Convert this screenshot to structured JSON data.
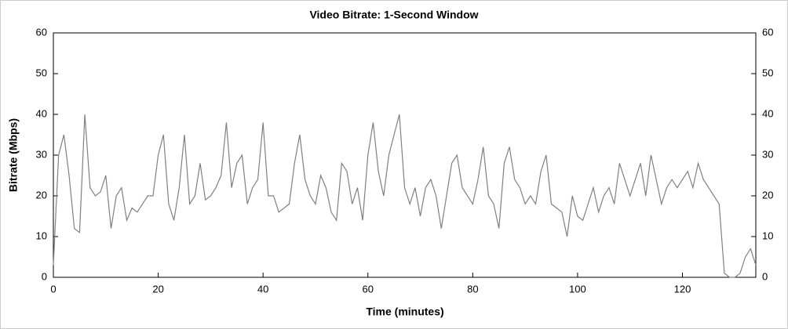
{
  "chart_data": {
    "type": "line",
    "title": "Video Bitrate: 1-Second Window",
    "xlabel": "Time (minutes)",
    "ylabel": "Bitrate (Mbps)",
    "x": [
      0,
      1,
      2,
      3,
      4,
      5,
      6,
      7,
      8,
      9,
      10,
      11,
      12,
      13,
      14,
      15,
      16,
      17,
      18,
      19,
      20,
      21,
      22,
      23,
      24,
      25,
      26,
      27,
      28,
      29,
      30,
      31,
      32,
      33,
      34,
      35,
      36,
      37,
      38,
      39,
      40,
      41,
      42,
      43,
      44,
      45,
      46,
      47,
      48,
      49,
      50,
      51,
      52,
      53,
      54,
      55,
      56,
      57,
      58,
      59,
      60,
      61,
      62,
      63,
      64,
      65,
      66,
      67,
      68,
      69,
      70,
      71,
      72,
      73,
      74,
      75,
      76,
      77,
      78,
      79,
      80,
      81,
      82,
      83,
      84,
      85,
      86,
      87,
      88,
      89,
      90,
      91,
      92,
      93,
      94,
      95,
      96,
      97,
      98,
      99,
      100,
      101,
      102,
      103,
      104,
      105,
      106,
      107,
      108,
      109,
      110,
      111,
      112,
      113,
      114,
      115,
      116,
      117,
      118,
      119,
      120,
      121,
      122,
      123,
      124,
      125,
      126,
      127,
      128,
      129,
      130,
      131,
      132,
      133,
      134
    ],
    "series": [
      {
        "name": "Video Bitrate",
        "color": "#808080",
        "values": [
          3,
          30,
          35,
          25,
          12,
          11,
          40,
          22,
          20,
          21,
          25,
          12,
          20,
          22,
          14,
          17,
          16,
          18,
          20,
          20,
          30,
          35,
          18,
          14,
          22,
          35,
          18,
          20,
          28,
          19,
          20,
          22,
          25,
          38,
          22,
          28,
          30,
          18,
          22,
          24,
          38,
          20,
          20,
          16,
          17,
          18,
          28,
          35,
          24,
          20,
          18,
          25,
          22,
          16,
          14,
          28,
          26,
          18,
          22,
          14,
          30,
          38,
          26,
          20,
          30,
          35,
          40,
          22,
          18,
          22,
          15,
          22,
          24,
          20,
          12,
          20,
          28,
          30,
          22,
          20,
          18,
          24,
          32,
          20,
          18,
          12,
          28,
          32,
          24,
          22,
          18,
          20,
          18,
          26,
          30,
          18,
          17,
          16,
          10,
          20,
          15,
          14,
          18,
          22,
          16,
          20,
          22,
          18,
          28,
          24,
          20,
          24,
          28,
          20,
          30,
          24,
          18,
          22,
          24,
          22,
          24,
          26,
          22,
          28,
          24,
          22,
          20,
          18,
          1,
          0,
          0,
          1,
          5,
          7,
          3
        ]
      }
    ],
    "xlim": [
      0,
      134
    ],
    "xticks": [
      0,
      20,
      40,
      60,
      80,
      100,
      120
    ],
    "ylim": [
      0,
      60
    ],
    "yticks": [
      0,
      10,
      20,
      30,
      40,
      50,
      60
    ],
    "y2lim": [
      0,
      60
    ],
    "y2ticks": [
      0,
      10,
      20,
      30,
      40,
      50,
      60
    ]
  }
}
